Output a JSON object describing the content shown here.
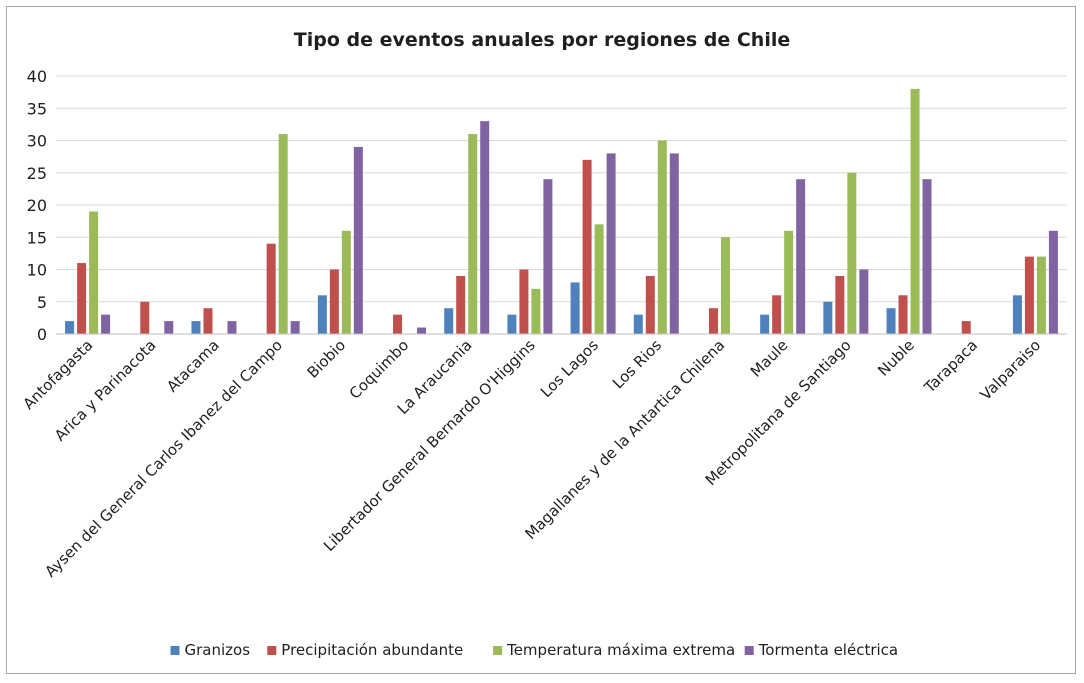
{
  "chart_data": {
    "type": "bar",
    "title": "Tipo de eventos anuales por regiones de Chile",
    "xlabel": "",
    "ylabel": "",
    "ylim": [
      0,
      40
    ],
    "yticks": [
      "0",
      "5",
      "10",
      "15",
      "20",
      "25",
      "30",
      "35",
      "40"
    ],
    "grid": true,
    "legend_position": "bottom",
    "categories": [
      "Antofagasta",
      "Arica y Parinacota",
      "Atacama",
      "Aysen del General Carlos Ibanez del Campo",
      "Biobio",
      "Coquimbo",
      "La Araucania",
      "Libertador General Bernardo O'Higgins",
      "Los Lagos",
      "Los Rios",
      "Magallanes y de la Antartica Chilena",
      "Maule",
      "Metropolitana de Santiago",
      "Nuble",
      "Tarapaca",
      "Valparaiso"
    ],
    "series": [
      {
        "name": "Granizos",
        "color": "#4f81bd",
        "values": [
          2,
          0,
          2,
          0,
          6,
          0,
          4,
          3,
          8,
          3,
          0,
          3,
          5,
          4,
          0,
          6
        ]
      },
      {
        "name": "Precipitación abundante",
        "color": "#c0504d",
        "values": [
          11,
          5,
          4,
          14,
          10,
          3,
          9,
          10,
          27,
          9,
          4,
          6,
          9,
          6,
          2,
          12
        ]
      },
      {
        "name": "Temperatura máxima extrema",
        "color": "#9bbb59",
        "values": [
          19,
          0,
          0,
          31,
          16,
          0,
          31,
          7,
          17,
          30,
          15,
          16,
          25,
          38,
          0,
          12
        ]
      },
      {
        "name": "Tormenta eléctrica",
        "color": "#8064a2",
        "values": [
          3,
          2,
          2,
          2,
          29,
          1,
          33,
          24,
          28,
          28,
          0,
          24,
          10,
          24,
          0,
          16
        ]
      }
    ]
  }
}
